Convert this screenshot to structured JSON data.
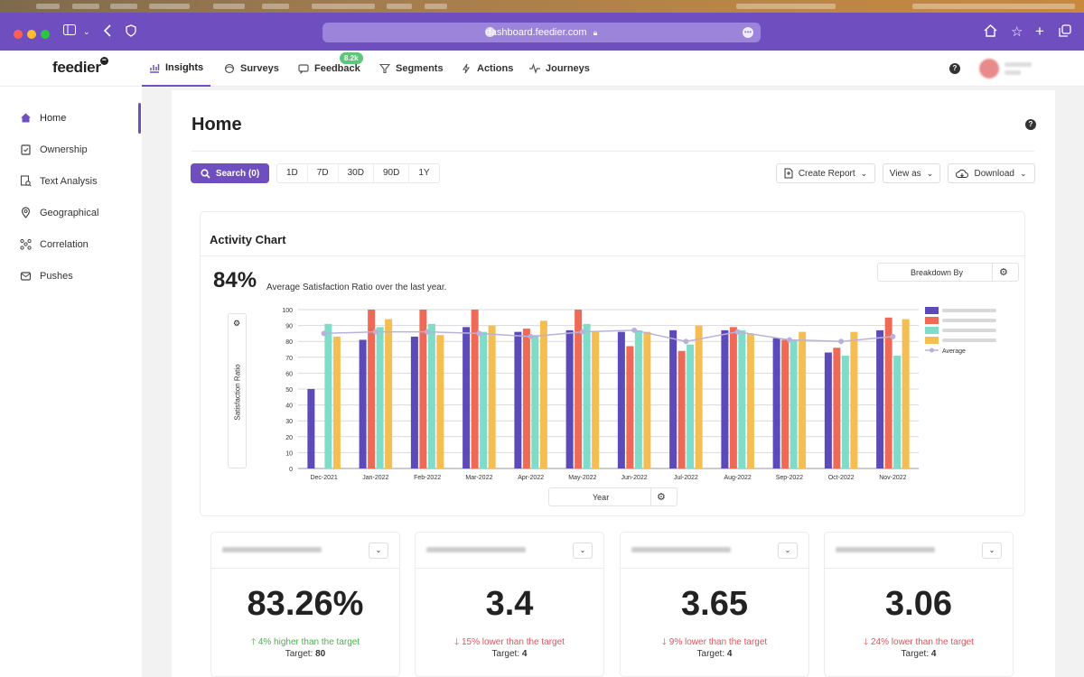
{
  "browser": {
    "url": "dashboard.feedier.com"
  },
  "topnav": {
    "logo": "feedier",
    "items": [
      {
        "label": "Insights",
        "icon": "chart-icon"
      },
      {
        "label": "Surveys",
        "icon": "surveys-icon"
      },
      {
        "label": "Feedback",
        "icon": "feedback-icon"
      },
      {
        "label": "Segments",
        "icon": "filter-icon"
      },
      {
        "label": "Actions",
        "icon": "bolt-icon"
      },
      {
        "label": "Journeys",
        "icon": "pulse-icon"
      }
    ],
    "feedback_badge": "8.2k",
    "help": "?"
  },
  "sidebar": {
    "items": [
      {
        "label": "Home",
        "icon": "home-icon"
      },
      {
        "label": "Ownership",
        "icon": "clipboard-icon"
      },
      {
        "label": "Text Analysis",
        "icon": "text-analysis-icon"
      },
      {
        "label": "Geographical",
        "icon": "location-icon"
      },
      {
        "label": "Correlation",
        "icon": "correlation-icon"
      },
      {
        "label": "Pushes",
        "icon": "pushes-icon"
      }
    ]
  },
  "page": {
    "title": "Home",
    "help": "?",
    "search_label": "Search (0)",
    "periods": [
      "1D",
      "7D",
      "30D",
      "90D",
      "1Y"
    ],
    "create_report": "Create Report",
    "view_as": "View as",
    "download": "Download"
  },
  "activity": {
    "title": "Activity Chart",
    "breakdown_label": "Breakdown By",
    "big_value": "84%",
    "big_label": "Average Satisfaction Ratio over the last year.",
    "y_axis_label": "Satisfaction Ratio",
    "x_axis_selector": "Year"
  },
  "chart_data": {
    "type": "bar",
    "ylabel": "Satisfaction Ratio",
    "ylim": [
      0,
      100
    ],
    "yticks": [
      0,
      10,
      20,
      30,
      40,
      50,
      60,
      70,
      80,
      90,
      100
    ],
    "categories": [
      "Dec-2021",
      "Jan-2022",
      "Feb-2022",
      "Mar-2022",
      "Apr-2022",
      "May-2022",
      "Jun-2022",
      "Jul-2022",
      "Aug-2022",
      "Sep-2022",
      "Oct-2022",
      "Nov-2022"
    ],
    "series": [
      {
        "color": "#5b4ab8",
        "values": [
          50,
          81,
          83,
          89,
          86,
          87,
          86,
          87,
          87,
          82,
          73,
          87
        ]
      },
      {
        "color": "#ee6a57",
        "values": [
          null,
          100,
          100,
          100,
          88,
          100,
          77,
          74,
          89,
          81,
          76,
          95
        ]
      },
      {
        "color": "#7fdcc8",
        "values": [
          91,
          89,
          91,
          86,
          84,
          91,
          87,
          78,
          87,
          81,
          71,
          71
        ]
      },
      {
        "color": "#f4be52",
        "values": [
          83,
          94,
          84,
          90,
          93,
          86,
          86,
          90,
          85,
          86,
          86,
          94
        ]
      }
    ],
    "average": {
      "name": "Average",
      "color": "#b9b1dc",
      "values": [
        85,
        86,
        86,
        85,
        83,
        86,
        87,
        80,
        86,
        81,
        80,
        83
      ]
    },
    "grid": true,
    "legend_position": "top-right"
  },
  "kpis": [
    {
      "value": "83.26%",
      "trend": "4% higher than the target",
      "direction": "up",
      "target_label": "Target:",
      "target": "80"
    },
    {
      "value": "3.4",
      "trend": "15% lower than the target",
      "direction": "down",
      "target_label": "Target:",
      "target": "4"
    },
    {
      "value": "3.65",
      "trend": "9% lower than the target",
      "direction": "down",
      "target_label": "Target:",
      "target": "4"
    },
    {
      "value": "3.06",
      "trend": "24% lower than the target",
      "direction": "down",
      "target_label": "Target:",
      "target": "4"
    }
  ],
  "colors": {
    "brand": "#6f4fc0",
    "positive": "#4caf50",
    "negative": "#e0525a"
  }
}
